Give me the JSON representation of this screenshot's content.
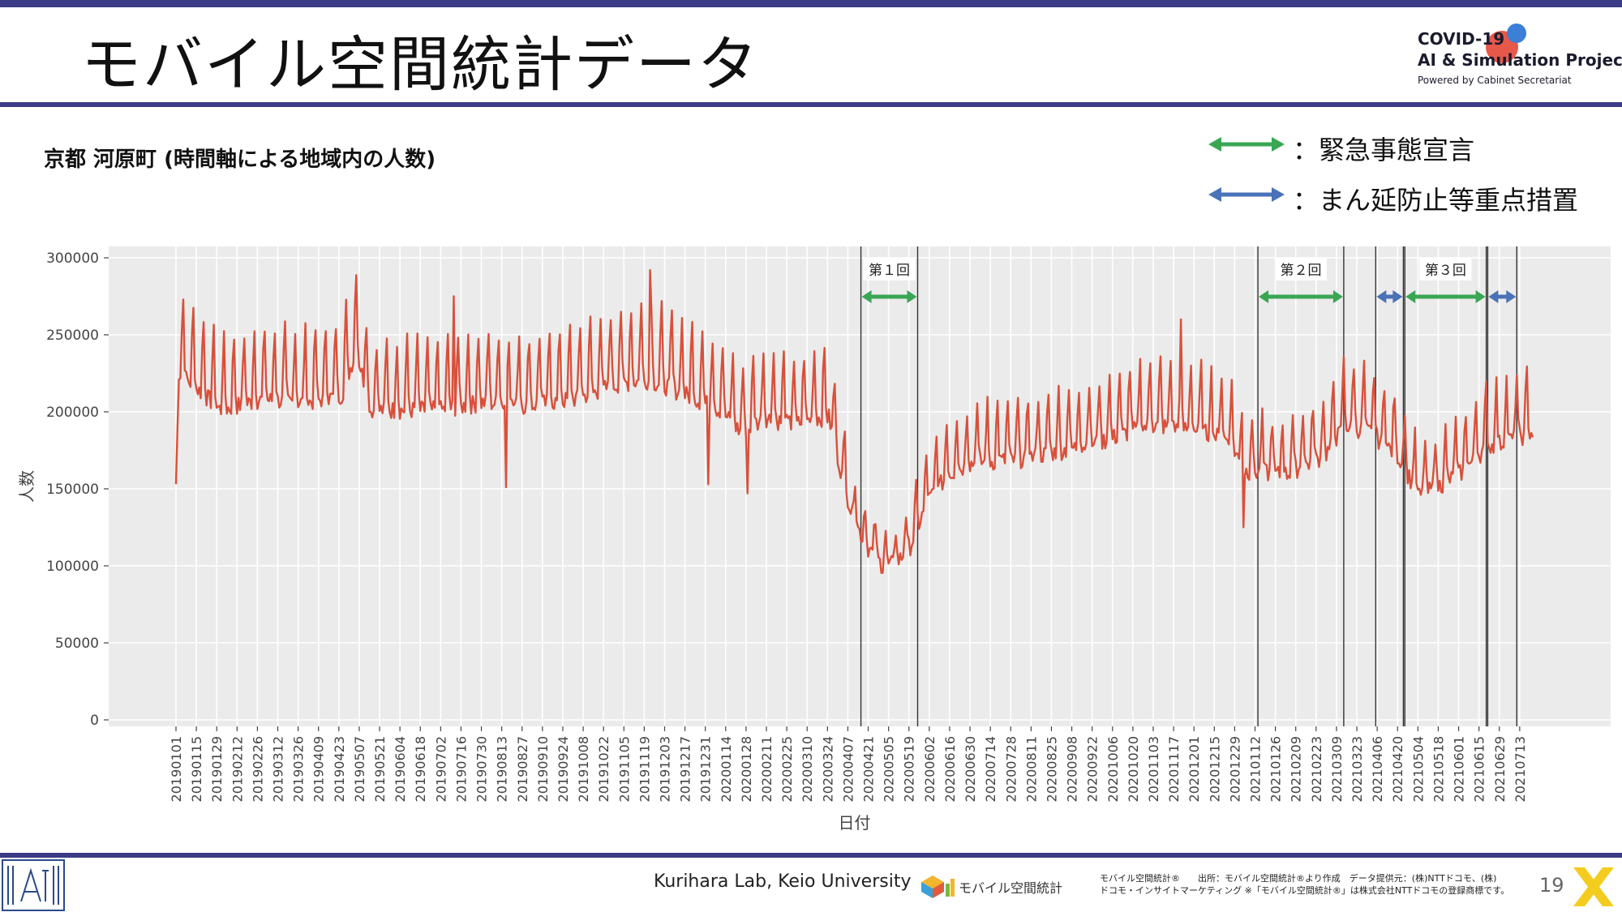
{
  "header": {
    "title": "モバイル空間統計データ",
    "logo": {
      "line1": "COVID-19",
      "line2": "AI & Simulation Project",
      "line3": "Powered by Cabinet Secretariat",
      "colors": {
        "blue": "#3b7fd6",
        "red": "#e5584a"
      }
    }
  },
  "legend": {
    "items": [
      {
        "label": "：緊急事態宣言",
        "color": "#3aa654"
      },
      {
        "label": "：まん延防止等重点措置",
        "color": "#4a72b8"
      }
    ]
  },
  "chart_data": {
    "type": "line",
    "title": "京都 河原町 (時間軸による地域内の人数)",
    "xlabel": "日付",
    "ylabel": "人数",
    "ylim": [
      0,
      300000
    ],
    "yticks": [
      0,
      50000,
      100000,
      150000,
      200000,
      250000,
      300000
    ],
    "xticks": [
      "20190101",
      "20190115",
      "20190129",
      "20190212",
      "20190226",
      "20190312",
      "20190326",
      "20190409",
      "20190423",
      "20190507",
      "20190521",
      "20190604",
      "20190618",
      "20190702",
      "20190716",
      "20190730",
      "20190813",
      "20190827",
      "20190910",
      "20190924",
      "20191008",
      "20191022",
      "20191105",
      "20191119",
      "20191203",
      "20191217",
      "20191231",
      "20200114",
      "20200128",
      "20200211",
      "20200225",
      "20200310",
      "20200324",
      "20200407",
      "20200421",
      "20200505",
      "20200519",
      "20200602",
      "20200616",
      "20200630",
      "20200714",
      "20200728",
      "20200811",
      "20200825",
      "20200908",
      "20200922",
      "20201006",
      "20201020",
      "20201103",
      "20201117",
      "20201201",
      "20201215",
      "20201229",
      "20210112",
      "20210126",
      "20210209",
      "20210223",
      "20210309",
      "20210323",
      "20210406",
      "20210420",
      "20210504",
      "20210518",
      "20210601",
      "20210615",
      "20210629",
      "20210713"
    ],
    "x_start": "20190101",
    "x_end": "20210722",
    "grid": true,
    "background": "#ebebeb",
    "line_color": "#d9503a",
    "series": [
      {
        "name": "",
        "anchors": [
          [
            "20190101",
            153000
          ],
          [
            "20190103",
            230000
          ],
          [
            "20190201",
            205000
          ],
          [
            "20190301",
            212000
          ],
          [
            "20190401",
            210000
          ],
          [
            "20190425",
            215000
          ],
          [
            "20190505",
            245000
          ],
          [
            "20190515",
            205000
          ],
          [
            "20190601",
            205000
          ],
          [
            "20190701",
            205000
          ],
          [
            "20190801",
            210000
          ],
          [
            "20190901",
            208000
          ],
          [
            "20191001",
            212000
          ],
          [
            "20191101",
            222000
          ],
          [
            "20191120",
            225000
          ],
          [
            "20191201",
            222000
          ],
          [
            "20191225",
            212000
          ],
          [
            "20200110",
            205000
          ],
          [
            "20200125",
            190000
          ],
          [
            "20200210",
            200000
          ],
          [
            "20200301",
            195000
          ],
          [
            "20200315",
            200000
          ],
          [
            "20200325",
            200000
          ],
          [
            "20200401",
            170000
          ],
          [
            "20200410",
            135000
          ],
          [
            "20200420",
            115000
          ],
          [
            "20200501",
            102000
          ],
          [
            "20200510",
            103000
          ],
          [
            "20200520",
            115000
          ],
          [
            "20200601",
            145000
          ],
          [
            "20200615",
            162000
          ],
          [
            "20200701",
            170000
          ],
          [
            "20200801",
            172000
          ],
          [
            "20200901",
            178000
          ],
          [
            "20201001",
            185000
          ],
          [
            "20201101",
            195000
          ],
          [
            "20201201",
            192000
          ],
          [
            "20201225",
            185000
          ],
          [
            "20210105",
            165000
          ],
          [
            "20210201",
            162000
          ],
          [
            "20210301",
            175000
          ],
          [
            "20210315",
            195000
          ],
          [
            "20210401",
            190000
          ],
          [
            "20210420",
            175000
          ],
          [
            "20210505",
            148000
          ],
          [
            "20210601",
            162000
          ],
          [
            "20210620",
            180000
          ],
          [
            "20210722",
            190000
          ]
        ],
        "outliers": [
          [
            "20190101",
            153000
          ],
          [
            "20190816",
            151000
          ],
          [
            "20200102",
            153000
          ],
          [
            "20200129",
            147000
          ],
          [
            "20210104",
            125000
          ],
          [
            "20191123",
            292000
          ],
          [
            "20190711",
            275000
          ],
          [
            "20201122",
            260000
          ]
        ]
      }
    ],
    "periods": [
      {
        "label": "第１回",
        "type": "emergency",
        "start": "20200416",
        "end": "20200525"
      },
      {
        "label": "第２回",
        "type": "emergency",
        "start": "20210114",
        "end": "20210314"
      },
      {
        "label": "",
        "type": "semi",
        "start": "20210405",
        "end": "20210424"
      },
      {
        "label": "第３回",
        "type": "emergency",
        "start": "20210425",
        "end": "20210620"
      },
      {
        "label": "",
        "type": "semi",
        "start": "20210621",
        "end": "20210711"
      }
    ],
    "period_colors": {
      "emergency": "#3aa654",
      "semi": "#4a72b8"
    }
  },
  "footer": {
    "credit": "Kurihara Lab, Keio University",
    "mobile_label": "モバイル空間統計",
    "note_line1": "モバイル空間統計®　　出所：モバイル空間統計®より作成　データ提供元：(株)NTTドコモ、(株)",
    "note_line2": "ドコモ・インサイトマーケティング ※「モバイル空間統計®」は株式会社NTTドコモの登録商標です。",
    "page_number": "19"
  }
}
